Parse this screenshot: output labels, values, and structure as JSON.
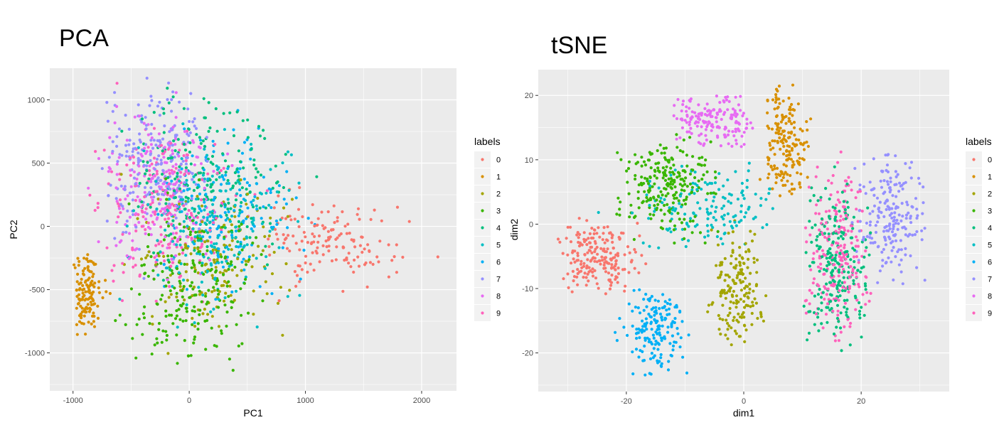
{
  "colors": {
    "panel_bg": "#ebebeb",
    "grid_major": "#ffffff",
    "label_palette": [
      "#F8766D",
      "#D89000",
      "#A3A500",
      "#39B600",
      "#00BF7D",
      "#00BFC4",
      "#00B0F6",
      "#9590FF",
      "#E76BF3",
      "#FF62BC"
    ]
  },
  "chart_data": [
    {
      "id": "pca",
      "type": "scatter",
      "title": "PCA",
      "xlabel": "PC1",
      "ylabel": "PC2",
      "xlim": [
        -1200,
        2300
      ],
      "ylim": [
        -1300,
        1250
      ],
      "x_ticks": [
        -1000,
        0,
        1000,
        2000
      ],
      "x_tick_labels": [
        "-1000",
        "0",
        "1000",
        "2000"
      ],
      "y_ticks": [
        -1000,
        -500,
        0,
        500,
        1000
      ],
      "y_tick_labels": [
        "-1000",
        "-500",
        "0",
        "500",
        "1000"
      ],
      "grid": true,
      "legend_title": "labels",
      "legend_position": "right",
      "categories": [
        "0",
        "1",
        "2",
        "3",
        "4",
        "5",
        "6",
        "7",
        "8",
        "9"
      ],
      "clusters": [
        {
          "label": "0",
          "n": 150,
          "x": [
            650,
            2250
          ],
          "y": [
            -620,
            350
          ],
          "cx": 1150,
          "cy": -150,
          "sx": 320,
          "sy": 170
        },
        {
          "label": "1",
          "n": 130,
          "x": [
            -1000,
            -650
          ],
          "y": [
            -920,
            -220
          ],
          "cx": -880,
          "cy": -520,
          "sx": 70,
          "sy": 150
        },
        {
          "label": "2",
          "n": 160,
          "x": [
            -600,
            1000
          ],
          "y": [
            -1050,
            450
          ],
          "cx": 200,
          "cy": -250,
          "sx": 300,
          "sy": 280
        },
        {
          "label": "3",
          "n": 220,
          "x": [
            -700,
            950
          ],
          "y": [
            -1200,
            600
          ],
          "cx": 0,
          "cy": -500,
          "sx": 280,
          "sy": 320
        },
        {
          "label": "4",
          "n": 220,
          "x": [
            -650,
            1250
          ],
          "y": [
            -600,
            1170
          ],
          "cx": 150,
          "cy": 350,
          "sx": 320,
          "sy": 330
        },
        {
          "label": "5",
          "n": 200,
          "x": [
            -650,
            1000
          ],
          "y": [
            -900,
            900
          ],
          "cx": 200,
          "cy": 0,
          "sx": 300,
          "sy": 320
        },
        {
          "label": "6",
          "n": 160,
          "x": [
            -300,
            1250
          ],
          "y": [
            -600,
            1050
          ],
          "cx": 350,
          "cy": 150,
          "sx": 300,
          "sy": 300
        },
        {
          "label": "7",
          "n": 220,
          "x": [
            -750,
            750
          ],
          "y": [
            -500,
            1210
          ],
          "cx": -300,
          "cy": 500,
          "sx": 220,
          "sy": 280
        },
        {
          "label": "8",
          "n": 200,
          "x": [
            -950,
            750
          ],
          "y": [
            -550,
            1150
          ],
          "cx": -250,
          "cy": 250,
          "sx": 250,
          "sy": 300
        },
        {
          "label": "9",
          "n": 200,
          "x": [
            -900,
            850
          ],
          "y": [
            -700,
            1150
          ],
          "cx": -200,
          "cy": 150,
          "sx": 280,
          "sy": 320
        }
      ]
    },
    {
      "id": "tsne",
      "type": "scatter",
      "title": "tSNE",
      "xlabel": "dim1",
      "ylabel": "dim2",
      "xlim": [
        -35,
        35
      ],
      "ylim": [
        -26,
        24
      ],
      "x_ticks": [
        -20,
        0,
        20
      ],
      "x_tick_labels": [
        "-20",
        "0",
        "20"
      ],
      "y_ticks": [
        -20,
        -10,
        0,
        10,
        20
      ],
      "y_tick_labels": [
        "-20",
        "-10",
        "0",
        "10",
        "20"
      ],
      "grid": true,
      "legend_title": "labels",
      "legend_position": "right",
      "categories": [
        "0",
        "1",
        "2",
        "3",
        "4",
        "5",
        "6",
        "7",
        "8",
        "9"
      ],
      "clusters": [
        {
          "label": "0",
          "n": 200,
          "x": [
            -32,
            -16
          ],
          "y": [
            -11,
            1
          ],
          "cx": -25,
          "cy": -5,
          "sx": 3.2,
          "sy": 2.8
        },
        {
          "label": "1",
          "n": 180,
          "x": [
            2,
            12
          ],
          "y": [
            4,
            22
          ],
          "cx": 7,
          "cy": 12,
          "sx": 1.8,
          "sy": 4.5
        },
        {
          "label": "2",
          "n": 170,
          "x": [
            -7,
            5
          ],
          "y": [
            -19,
            1
          ],
          "cx": -1,
          "cy": -10,
          "sx": 2.2,
          "sy": 4
        },
        {
          "label": "3",
          "n": 230,
          "x": [
            -22,
            -4
          ],
          "y": [
            -3,
            14
          ],
          "cx": -13,
          "cy": 6,
          "sx": 4,
          "sy": 3.5
        },
        {
          "label": "4",
          "n": 230,
          "x": [
            10,
            22
          ],
          "y": [
            -20,
            12
          ],
          "cx": 16,
          "cy": -6,
          "sx": 3,
          "sy": 6
        },
        {
          "label": "5",
          "n": 150,
          "x": [
            -25,
            5
          ],
          "y": [
            -5,
            12
          ],
          "cx": -6,
          "cy": 3,
          "sx": 6,
          "sy": 3.5
        },
        {
          "label": "6",
          "n": 170,
          "x": [
            -23,
            -9
          ],
          "y": [
            -24,
            -10
          ],
          "cx": -15,
          "cy": -16,
          "sx": 2.6,
          "sy": 3.2
        },
        {
          "label": "7",
          "n": 200,
          "x": [
            18,
            31
          ],
          "y": [
            -11,
            12
          ],
          "cx": 25.5,
          "cy": 1,
          "sx": 2.8,
          "sy": 5
        },
        {
          "label": "8",
          "n": 170,
          "x": [
            -12,
            2
          ],
          "y": [
            12,
            20
          ],
          "cx": -6,
          "cy": 16,
          "sx": 4,
          "sy": 2
        },
        {
          "label": "9",
          "n": 220,
          "x": [
            10,
            22
          ],
          "y": [
            -19,
            13
          ],
          "cx": 16,
          "cy": -4,
          "sx": 3,
          "sy": 6.5
        }
      ]
    }
  ]
}
